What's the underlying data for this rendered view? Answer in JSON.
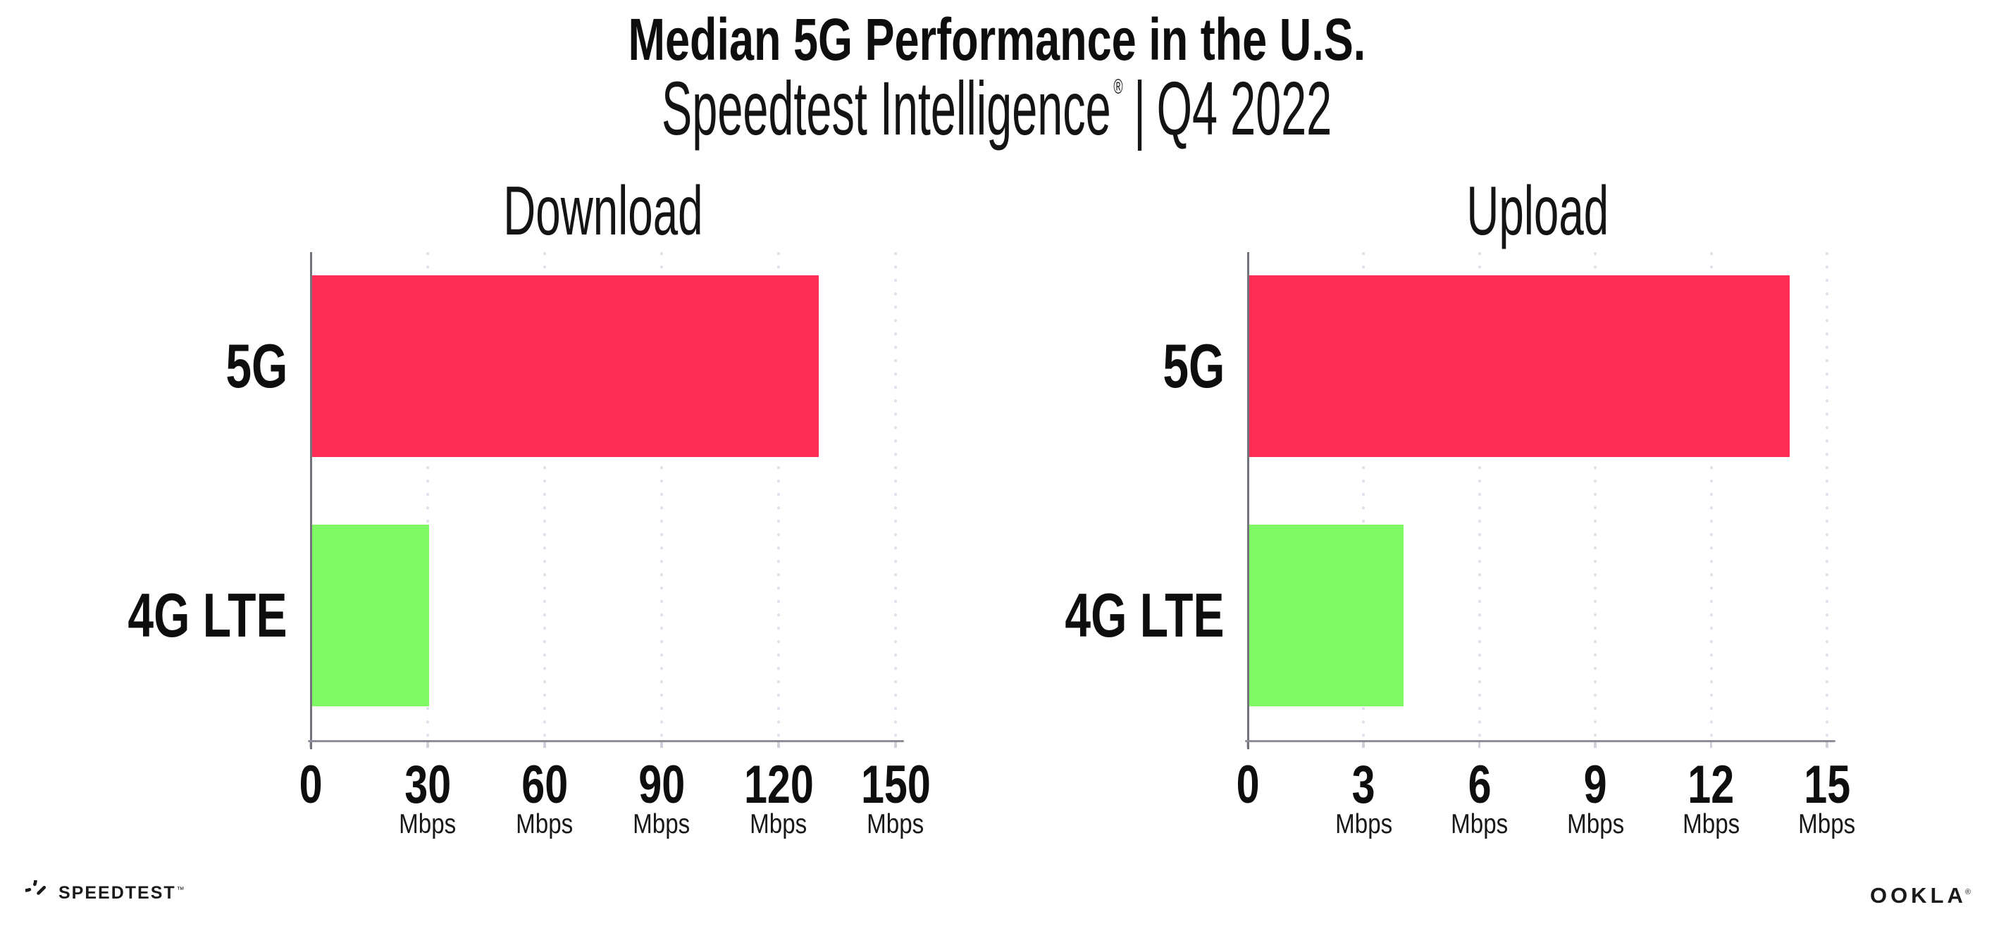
{
  "header": {
    "title": "Median 5G Performance in the U.S.",
    "subtitle_brand": "Speedtest Intelligence",
    "subtitle_reg": "®",
    "subtitle_separator": "|",
    "subtitle_period": "Q4 2022"
  },
  "footer": {
    "speedtest_label": "SPEEDTEST",
    "speedtest_tm": "™",
    "ookla_label": "OOKLA",
    "ookla_reg": "®"
  },
  "colors": {
    "bar_5g": "#FF2D55",
    "bar_4g_lte": "#7FFA64",
    "gridline": "#DFE0EB",
    "x_axis_line": "#8E8E98",
    "y_axis_line": "#73737C",
    "text": "#0E0E0E"
  },
  "chart_data": [
    {
      "type": "bar",
      "orientation": "horizontal",
      "title": "Download",
      "categories": [
        "5G",
        "4G LTE"
      ],
      "values": [
        130,
        30
      ],
      "bar_colors": [
        "#FF2D55",
        "#7FFA64"
      ],
      "unit": "Mbps",
      "xlim": [
        0,
        150
      ],
      "xticks": [
        0,
        30,
        60,
        90,
        120,
        150
      ],
      "tick_unit_label": "Mbps",
      "grid": "dotted-vertical",
      "legend": "none"
    },
    {
      "type": "bar",
      "orientation": "horizontal",
      "title": "Upload",
      "categories": [
        "5G",
        "4G LTE"
      ],
      "values": [
        14,
        4
      ],
      "bar_colors": [
        "#FF2D55",
        "#7FFA64"
      ],
      "unit": "Mbps",
      "xlim": [
        0,
        15
      ],
      "xticks": [
        0,
        3,
        6,
        9,
        12,
        15
      ],
      "tick_unit_label": "Mbps",
      "grid": "dotted-vertical",
      "legend": "none"
    }
  ]
}
